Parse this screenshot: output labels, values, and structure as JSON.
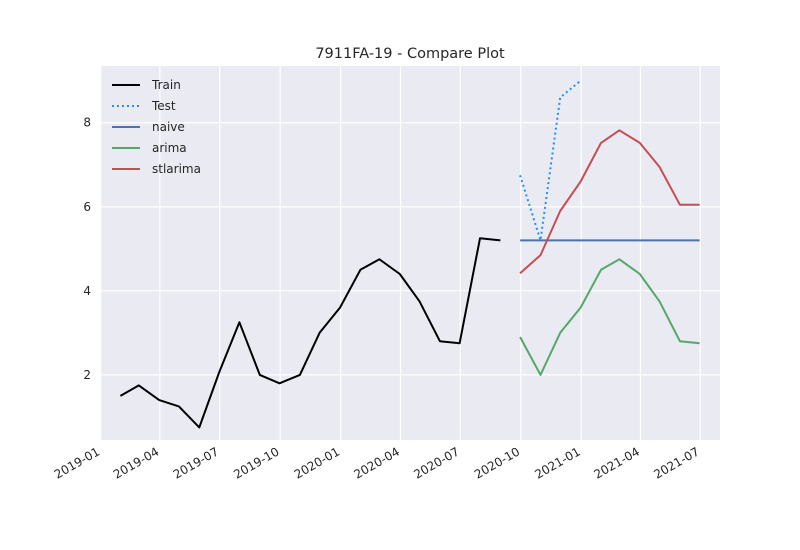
{
  "chart_data": {
    "type": "line",
    "title": "7911FA-19 - Compare Plot",
    "xlabel": "",
    "ylabel": "",
    "x_ticks": [
      "2019-01",
      "2019-04",
      "2019-07",
      "2019-10",
      "2020-01",
      "2020-04",
      "2020-07",
      "2020-10",
      "2021-01",
      "2021-04",
      "2021-07"
    ],
    "y_ticks": [
      2,
      4,
      6,
      8
    ],
    "xlim": [
      "2018-12-31",
      "2021-07-31"
    ],
    "ylim": [
      0.45,
      9.35
    ],
    "grid": true,
    "background": "#eaeaf2",
    "legend_position": "top-left",
    "series": [
      {
        "name": "Train",
        "color": "#000000",
        "style": "solid",
        "points": [
          [
            "2019-01-31",
            1.5
          ],
          [
            "2019-02-28",
            1.75
          ],
          [
            "2019-03-31",
            1.4
          ],
          [
            "2019-04-30",
            1.25
          ],
          [
            "2019-05-31",
            0.75
          ],
          [
            "2019-06-30",
            2.05
          ],
          [
            "2019-07-31",
            3.25
          ],
          [
            "2019-08-31",
            2.0
          ],
          [
            "2019-09-30",
            1.8
          ],
          [
            "2019-10-31",
            2.0
          ],
          [
            "2019-11-30",
            3.0
          ],
          [
            "2019-12-31",
            3.6
          ],
          [
            "2020-01-31",
            4.5
          ],
          [
            "2020-02-29",
            4.75
          ],
          [
            "2020-03-31",
            4.4
          ],
          [
            "2020-04-30",
            3.75
          ],
          [
            "2020-05-31",
            2.8
          ],
          [
            "2020-06-30",
            2.75
          ],
          [
            "2020-07-31",
            5.25
          ],
          [
            "2020-08-31",
            5.2
          ]
        ]
      },
      {
        "name": "Test",
        "color": "#1e90ff",
        "style": "dotted",
        "points": [
          [
            "2020-09-30",
            6.75
          ],
          [
            "2020-10-31",
            5.2
          ],
          [
            "2020-11-30",
            8.6
          ],
          [
            "2020-12-31",
            9.0
          ]
        ]
      },
      {
        "name": "naive",
        "color": "#4c72b0",
        "style": "solid",
        "points": [
          [
            "2020-09-30",
            5.2
          ],
          [
            "2020-10-31",
            5.2
          ],
          [
            "2020-11-30",
            5.2
          ],
          [
            "2020-12-31",
            5.2
          ],
          [
            "2021-01-31",
            5.2
          ],
          [
            "2021-02-28",
            5.2
          ],
          [
            "2021-03-31",
            5.2
          ],
          [
            "2021-04-30",
            5.2
          ],
          [
            "2021-05-31",
            5.2
          ],
          [
            "2021-06-30",
            5.2
          ]
        ]
      },
      {
        "name": "arima",
        "color": "#55a868",
        "style": "solid",
        "points": [
          [
            "2020-09-30",
            2.9
          ],
          [
            "2020-10-31",
            2.0
          ],
          [
            "2020-11-30",
            3.0
          ],
          [
            "2020-12-31",
            3.6
          ],
          [
            "2021-01-31",
            4.5
          ],
          [
            "2021-02-28",
            4.75
          ],
          [
            "2021-03-31",
            4.4
          ],
          [
            "2021-04-30",
            3.75
          ],
          [
            "2021-05-31",
            2.8
          ],
          [
            "2021-06-30",
            2.75
          ]
        ]
      },
      {
        "name": "stlarima",
        "color": "#c44e52",
        "style": "solid",
        "points": [
          [
            "2020-09-30",
            4.42
          ],
          [
            "2020-10-31",
            4.85
          ],
          [
            "2020-11-30",
            5.9
          ],
          [
            "2020-12-31",
            6.6
          ],
          [
            "2021-01-31",
            7.52
          ],
          [
            "2021-02-28",
            7.82
          ],
          [
            "2021-03-31",
            7.52
          ],
          [
            "2021-04-30",
            6.95
          ],
          [
            "2021-05-31",
            6.05
          ],
          [
            "2021-06-30",
            6.05
          ]
        ]
      }
    ]
  }
}
